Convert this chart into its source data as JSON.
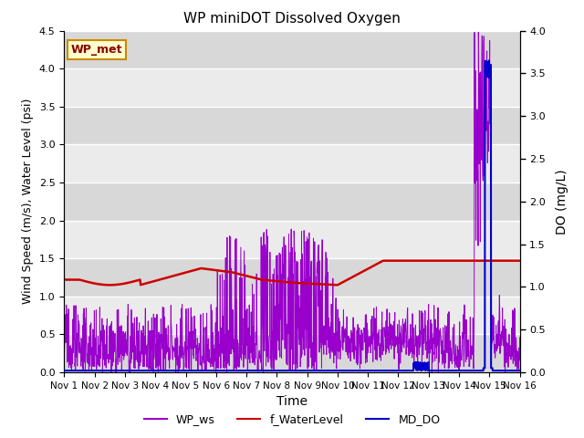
{
  "title": "WP miniDOT Dissolved Oxygen",
  "xlabel": "Time",
  "ylabel_left": "Wind Speed (m/s), Water Level (psi)",
  "ylabel_right": "DO (mg/L)",
  "xlim": [
    0,
    15
  ],
  "ylim_left": [
    0.0,
    4.5
  ],
  "ylim_right": [
    0.0,
    4.0
  ],
  "xtick_labels": [
    "Nov 1",
    "Nov 2",
    "Nov 3",
    "Nov 4",
    "Nov 5",
    "Nov 6",
    "Nov 7",
    "Nov 8",
    "Nov 9",
    "Nov 10",
    "Nov 11",
    "Nov 12",
    "Nov 13",
    "Nov 14",
    "Nov 15",
    "Nov 16"
  ],
  "yticks_left": [
    0.0,
    0.5,
    1.0,
    1.5,
    2.0,
    2.5,
    3.0,
    3.5,
    4.0,
    4.5
  ],
  "yticks_right": [
    0.0,
    0.5,
    1.0,
    1.5,
    2.0,
    2.5,
    3.0,
    3.5,
    4.0
  ],
  "color_ws": "#9900cc",
  "color_wl": "#cc0000",
  "color_do": "#0000cc",
  "bg_light": "#ebebeb",
  "bg_dark": "#d8d8d8",
  "legend_items": [
    "WP_ws",
    "f_WaterLevel",
    "MD_DO"
  ],
  "annotation_text": "WP_met",
  "annotation_color": "#880000",
  "annotation_bg": "#ffffcc",
  "annotation_border": "#cc8800"
}
